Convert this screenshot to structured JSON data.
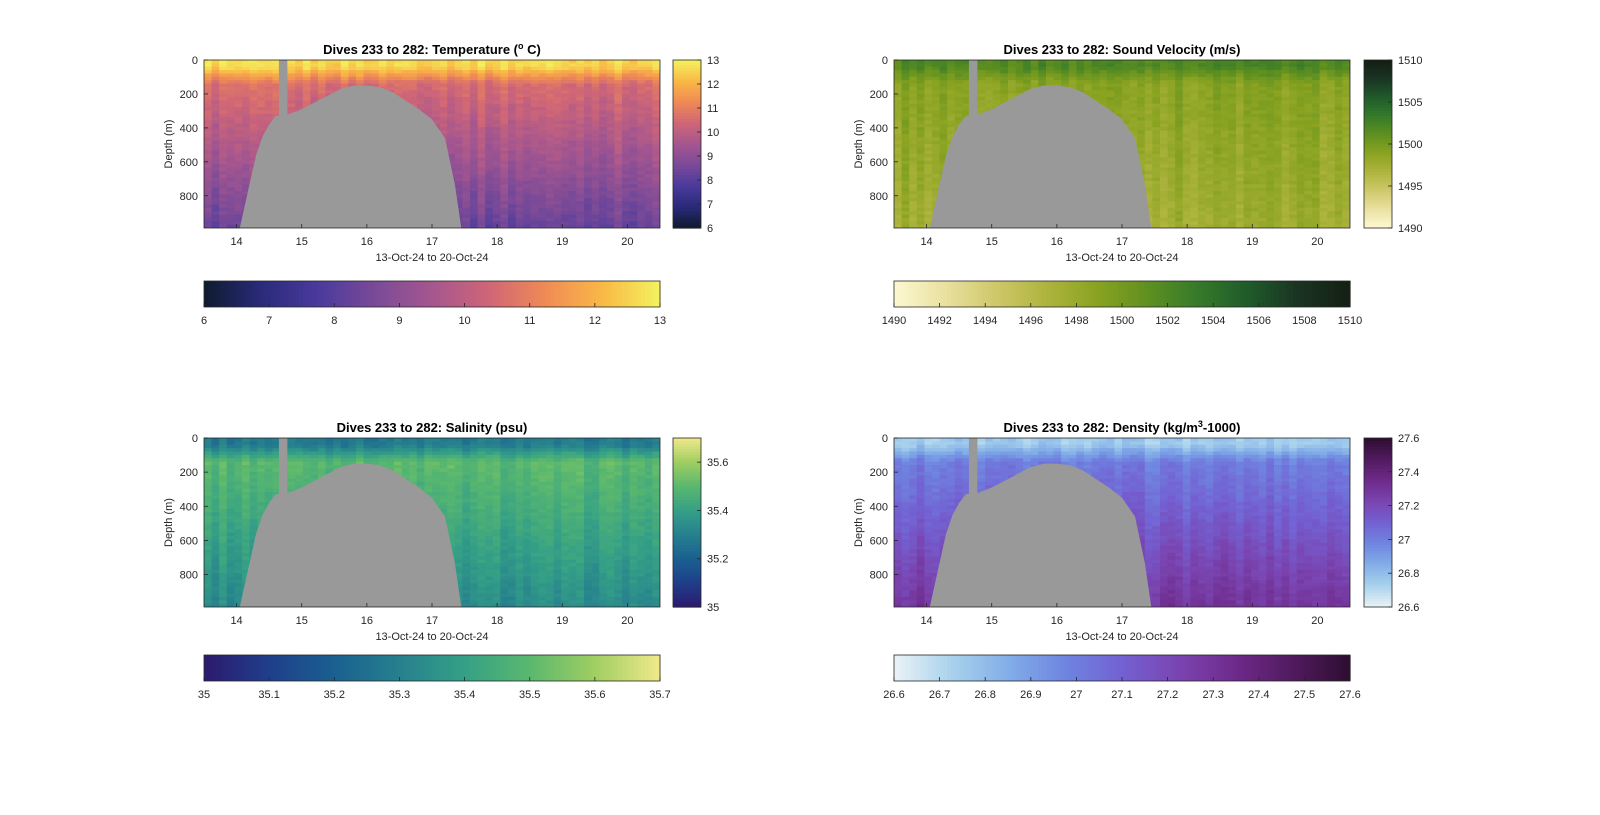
{
  "chart_data": [
    {
      "type": "heatmap",
      "title": "Dives 233 to 282: Temperature (",
      "title_sup": "o",
      "title_suffix": " C)",
      "xlabel": "13-Oct-24 to 20-Oct-24",
      "ylabel": "Depth (m)",
      "xlim": [
        13.5,
        20.5
      ],
      "ylim": [
        0,
        990
      ],
      "x_ticks": [
        "14",
        "15",
        "16",
        "17",
        "18",
        "19",
        "20"
      ],
      "y_ticks": [
        "0",
        "200",
        "400",
        "600",
        "800"
      ],
      "colorbar_ticks": [
        "6",
        "7",
        "8",
        "9",
        "10",
        "11",
        "12",
        "13"
      ],
      "colorbar_range": [
        6,
        13
      ],
      "hcolorbar_ticks": [
        "6",
        "7",
        "8",
        "9",
        "10",
        "11",
        "12",
        "13"
      ],
      "colormap": [
        "#0d1b2e",
        "#2a2a7a",
        "#4a3a9c",
        "#7a4a98",
        "#a5568f",
        "#cf6677",
        "#f08a55",
        "#f9b946",
        "#f3f35f"
      ],
      "surface_value": 12.6,
      "deep_value": 8.3,
      "surface_layer_value": 10.6
    },
    {
      "type": "heatmap",
      "title": "Dives 233 to 282: Sound Velocity (m/s)",
      "xlabel": "13-Oct-24 to 20-Oct-24",
      "ylabel": "Depth (m)",
      "xlim": [
        13.5,
        20.5
      ],
      "ylim": [
        0,
        990
      ],
      "x_ticks": [
        "14",
        "15",
        "16",
        "17",
        "18",
        "19",
        "20"
      ],
      "y_ticks": [
        "0",
        "200",
        "400",
        "600",
        "800"
      ],
      "colorbar_ticks": [
        "1490",
        "1495",
        "1500",
        "1505",
        "1510"
      ],
      "colorbar_range": [
        1490,
        1510
      ],
      "hcolorbar_ticks": [
        "1490",
        "1492",
        "1494",
        "1496",
        "1498",
        "1500",
        "1502",
        "1504",
        "1506",
        "1508",
        "1510"
      ],
      "colormap": [
        "#fdf8d2",
        "#e9e1a0",
        "#cfc86a",
        "#aeb43e",
        "#8aa321",
        "#5f9020",
        "#357a2a",
        "#1f5a2a",
        "#1a3322",
        "#141f14"
      ],
      "surface_value": 1502,
      "deep_value": 1497.5,
      "surface_layer_value": 1499
    },
    {
      "type": "heatmap",
      "title": "Dives 233 to 282: Salinity (psu)",
      "xlabel": "13-Oct-24 to 20-Oct-24",
      "ylabel": "Depth (m)",
      "xlim": [
        13.5,
        20.5
      ],
      "ylim": [
        0,
        990
      ],
      "x_ticks": [
        "14",
        "15",
        "16",
        "17",
        "18",
        "19",
        "20"
      ],
      "y_ticks": [
        "0",
        "200",
        "400",
        "600",
        "800"
      ],
      "colorbar_ticks": [
        "35",
        "35.2",
        "35.4",
        "35.6"
      ],
      "colorbar_range": [
        35,
        35.7
      ],
      "hcolorbar_ticks": [
        "35",
        "35.1",
        "35.2",
        "35.3",
        "35.4",
        "35.5",
        "35.6",
        "35.7"
      ],
      "colormap": [
        "#2c1a6e",
        "#1f3e8a",
        "#1a6090",
        "#26808e",
        "#35a086",
        "#5ab86e",
        "#a0ce62",
        "#f0e98a"
      ],
      "surface_value": 35.28,
      "deep_value": 35.33,
      "surface_layer_value": 35.5
    },
    {
      "type": "heatmap",
      "title": "Dives 233 to 282: Density (kg/m",
      "title_sup": "3",
      "title_suffix": "-1000)",
      "xlabel": "13-Oct-24 to 20-Oct-24",
      "ylabel": "Depth (m)",
      "xlim": [
        13.5,
        20.5
      ],
      "ylim": [
        0,
        990
      ],
      "x_ticks": [
        "14",
        "15",
        "16",
        "17",
        "18",
        "19",
        "20"
      ],
      "y_ticks": [
        "0",
        "200",
        "400",
        "600",
        "800"
      ],
      "colorbar_ticks": [
        "26.6",
        "26.8",
        "27",
        "27.2",
        "27.4",
        "27.6"
      ],
      "colorbar_range": [
        26.6,
        27.6
      ],
      "hcolorbar_ticks": [
        "26.6",
        "26.7",
        "26.8",
        "26.9",
        "27",
        "27.1",
        "27.2",
        "27.3",
        "27.4",
        "27.5",
        "27.6"
      ],
      "colormap": [
        "#eaf3f6",
        "#a9d2ec",
        "#82aee8",
        "#6f85e0",
        "#7361d2",
        "#7a44b0",
        "#6e2a8a",
        "#501a5e",
        "#2e0e30"
      ],
      "surface_value": 26.75,
      "deep_value": 27.3,
      "surface_layer_value": 27.0
    }
  ],
  "mask": {
    "color": "#999999",
    "pillar_x": [
      14.65,
      14.78
    ],
    "pillar_bottom_depth": 330,
    "dome_profile": [
      [
        14.05,
        990
      ],
      [
        14.2,
        730
      ],
      [
        14.3,
        560
      ],
      [
        14.4,
        450
      ],
      [
        14.5,
        380
      ],
      [
        14.6,
        330
      ],
      [
        14.8,
        320
      ],
      [
        15.0,
        290
      ],
      [
        15.2,
        250
      ],
      [
        15.4,
        210
      ],
      [
        15.6,
        170
      ],
      [
        15.8,
        150
      ],
      [
        16.0,
        150
      ],
      [
        16.2,
        160
      ],
      [
        16.4,
        190
      ],
      [
        16.6,
        240
      ],
      [
        16.8,
        290
      ],
      [
        17.0,
        350
      ],
      [
        17.2,
        460
      ],
      [
        17.35,
        730
      ],
      [
        17.45,
        990
      ]
    ]
  }
}
